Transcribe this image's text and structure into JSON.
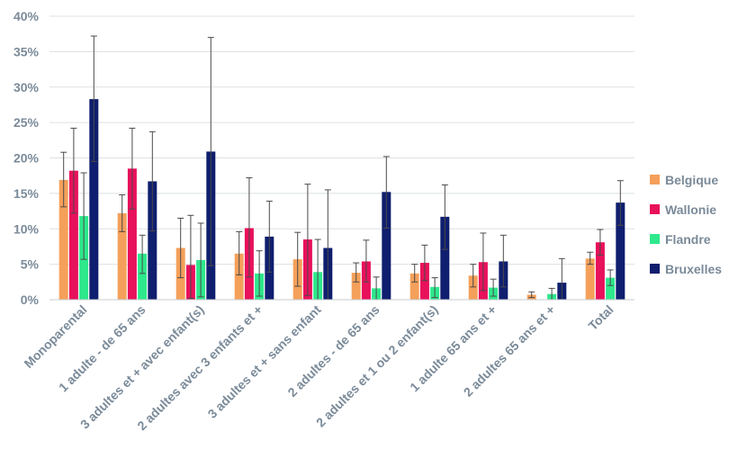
{
  "chart_data": {
    "type": "bar",
    "title": "",
    "xlabel": "",
    "ylabel": "",
    "ylim": [
      0,
      40
    ],
    "yticks": [
      0,
      5,
      10,
      15,
      20,
      25,
      30,
      35,
      40
    ],
    "ytick_suffix": "%",
    "grid": true,
    "legend_position": "right",
    "categories": [
      "Monoparental",
      "1 adulte - de 65 ans",
      "3 adultes et + avec enfant(s)",
      "2 adultes avec 3 enfants et +",
      "3 adultes et + sans enfant",
      "2 adultes - de 65 ans",
      "2 adultes et 1 ou 2 enfant(s)",
      "1 adulte 65 ans et +",
      "2 adultes 65 ans et +",
      "Total"
    ],
    "series": [
      {
        "name": "Belgique",
        "color": "#f5a05a",
        "values": [
          16.9,
          12.2,
          7.3,
          6.5,
          5.7,
          3.8,
          3.7,
          3.4,
          0.7,
          5.8
        ],
        "err_low": [
          13.1,
          9.6,
          3.1,
          3.5,
          1.9,
          2.5,
          2.5,
          1.8,
          0.3,
          5.0
        ],
        "err_high": [
          20.8,
          14.8,
          11.5,
          9.6,
          9.5,
          5.2,
          5.0,
          5.0,
          1.1,
          6.7
        ]
      },
      {
        "name": "Wallonie",
        "color": "#e8115b",
        "values": [
          18.2,
          18.5,
          4.9,
          10.1,
          8.5,
          5.4,
          5.2,
          5.3,
          0.0,
          8.1
        ],
        "err_low": [
          12.2,
          12.8,
          0.2,
          3.2,
          0.6,
          2.5,
          2.7,
          1.3,
          0.0,
          6.3
        ],
        "err_high": [
          24.2,
          24.2,
          11.9,
          17.2,
          16.3,
          8.4,
          7.7,
          9.4,
          0.0,
          9.9
        ]
      },
      {
        "name": "Flandre",
        "color": "#2ee88c",
        "values": [
          11.8,
          6.5,
          5.6,
          3.7,
          3.9,
          1.6,
          1.8,
          1.7,
          0.8,
          3.1
        ],
        "err_low": [
          5.7,
          3.7,
          0.4,
          0.5,
          0.0,
          0.0,
          0.3,
          0.5,
          0.0,
          2.0
        ],
        "err_high": [
          17.9,
          9.1,
          10.8,
          6.9,
          8.5,
          3.2,
          3.1,
          2.9,
          1.6,
          4.2
        ]
      },
      {
        "name": "Bruxelles",
        "color": "#0f1e6e",
        "values": [
          28.3,
          16.7,
          20.9,
          8.9,
          7.3,
          15.2,
          11.7,
          5.4,
          2.4,
          13.7
        ],
        "err_low": [
          19.5,
          9.7,
          4.8,
          3.9,
          0.0,
          10.1,
          7.1,
          1.8,
          0.0,
          10.5
        ],
        "err_high": [
          37.2,
          23.7,
          37.0,
          13.9,
          15.5,
          20.2,
          16.2,
          9.1,
          5.8,
          16.8
        ]
      }
    ]
  }
}
